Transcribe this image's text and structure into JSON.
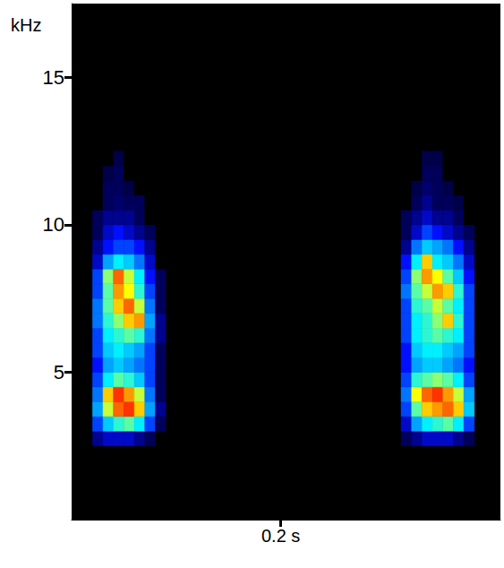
{
  "chart_data": {
    "type": "heatmap",
    "y_label": "kHz",
    "xlim": [
      0,
      0.41
    ],
    "xticks": [
      {
        "value": 0.2,
        "label": "0.2 s"
      }
    ],
    "ylim": [
      0,
      17.5
    ],
    "yticks": [
      5,
      10,
      15
    ],
    "grid": false,
    "x": [
      0.02,
      0.03,
      0.04,
      0.05,
      0.06,
      0.07,
      0.08,
      0.315,
      0.325,
      0.335,
      0.345,
      0.355,
      0.365,
      0.375
    ],
    "y": [
      2.5,
      3.0,
      3.5,
      4.0,
      4.5,
      5.0,
      5.5,
      6.0,
      6.5,
      7.0,
      7.5,
      8.0,
      8.5,
      9.0,
      9.5,
      10.0,
      10.5,
      11.0,
      11.5,
      12.0
    ],
    "x_step": 0.01,
    "y_step": 0.5,
    "power_range": [
      0,
      1
    ],
    "power": [
      [
        0.15,
        0.2,
        0.2,
        0.2,
        0.15,
        0.1,
        0,
        0.1,
        0.15,
        0.2,
        0.2,
        0.2,
        0.15,
        0.1
      ],
      [
        0.3,
        0.45,
        0.55,
        0.6,
        0.5,
        0.3,
        0.1,
        0.2,
        0.4,
        0.5,
        0.55,
        0.6,
        0.5,
        0.3
      ],
      [
        0.4,
        0.7,
        0.9,
        0.95,
        0.8,
        0.4,
        0.15,
        0.3,
        0.6,
        0.8,
        0.85,
        0.9,
        0.8,
        0.45
      ],
      [
        0.35,
        0.8,
        0.95,
        0.85,
        0.7,
        0.35,
        0.1,
        0.35,
        0.75,
        0.9,
        0.95,
        0.85,
        0.7,
        0.4
      ],
      [
        0.3,
        0.5,
        0.6,
        0.55,
        0.45,
        0.3,
        0.1,
        0.3,
        0.55,
        0.6,
        0.65,
        0.6,
        0.5,
        0.3
      ],
      [
        0.25,
        0.4,
        0.45,
        0.4,
        0.35,
        0.3,
        0.1,
        0.25,
        0.4,
        0.45,
        0.45,
        0.4,
        0.35,
        0.25
      ],
      [
        0.3,
        0.45,
        0.5,
        0.45,
        0.4,
        0.3,
        0.1,
        0.25,
        0.45,
        0.5,
        0.5,
        0.45,
        0.4,
        0.3
      ],
      [
        0.3,
        0.5,
        0.55,
        0.6,
        0.55,
        0.35,
        0.15,
        0.3,
        0.5,
        0.55,
        0.6,
        0.55,
        0.5,
        0.3
      ],
      [
        0.35,
        0.55,
        0.65,
        0.8,
        0.85,
        0.4,
        0.15,
        0.3,
        0.5,
        0.55,
        0.65,
        0.8,
        0.55,
        0.3
      ],
      [
        0.35,
        0.6,
        0.8,
        0.9,
        0.7,
        0.35,
        0.1,
        0.3,
        0.55,
        0.6,
        0.7,
        0.6,
        0.5,
        0.3
      ],
      [
        0.3,
        0.6,
        0.85,
        0.75,
        0.55,
        0.3,
        0.1,
        0.35,
        0.6,
        0.7,
        0.85,
        0.8,
        0.55,
        0.3
      ],
      [
        0.3,
        0.65,
        0.9,
        0.7,
        0.5,
        0.25,
        0.1,
        0.3,
        0.65,
        0.85,
        0.75,
        0.6,
        0.45,
        0.25
      ],
      [
        0.2,
        0.4,
        0.5,
        0.45,
        0.35,
        0.2,
        0,
        0.25,
        0.5,
        0.8,
        0.5,
        0.45,
        0.35,
        0.2
      ],
      [
        0.15,
        0.25,
        0.3,
        0.3,
        0.25,
        0.15,
        0,
        0.15,
        0.35,
        0.45,
        0.4,
        0.35,
        0.25,
        0.15
      ],
      [
        0.1,
        0.2,
        0.25,
        0.2,
        0.15,
        0.1,
        0,
        0.1,
        0.2,
        0.3,
        0.25,
        0.2,
        0.15,
        0.1
      ],
      [
        0.1,
        0.15,
        0.15,
        0.15,
        0.1,
        0,
        0,
        0.1,
        0.15,
        0.2,
        0.15,
        0.15,
        0.1,
        0
      ],
      [
        0,
        0.1,
        0.12,
        0.1,
        0.1,
        0,
        0,
        0,
        0.1,
        0.15,
        0.1,
        0.1,
        0.08,
        0
      ],
      [
        0,
        0.1,
        0.1,
        0.08,
        0,
        0,
        0,
        0,
        0.08,
        0.12,
        0.1,
        0.08,
        0,
        0
      ],
      [
        0,
        0.08,
        0.1,
        0,
        0,
        0,
        0,
        0,
        0,
        0.1,
        0.1,
        0,
        0,
        0
      ],
      [
        0,
        0,
        0.08,
        0,
        0,
        0,
        0,
        0,
        0,
        0.08,
        0.08,
        0,
        0,
        0
      ]
    ]
  }
}
